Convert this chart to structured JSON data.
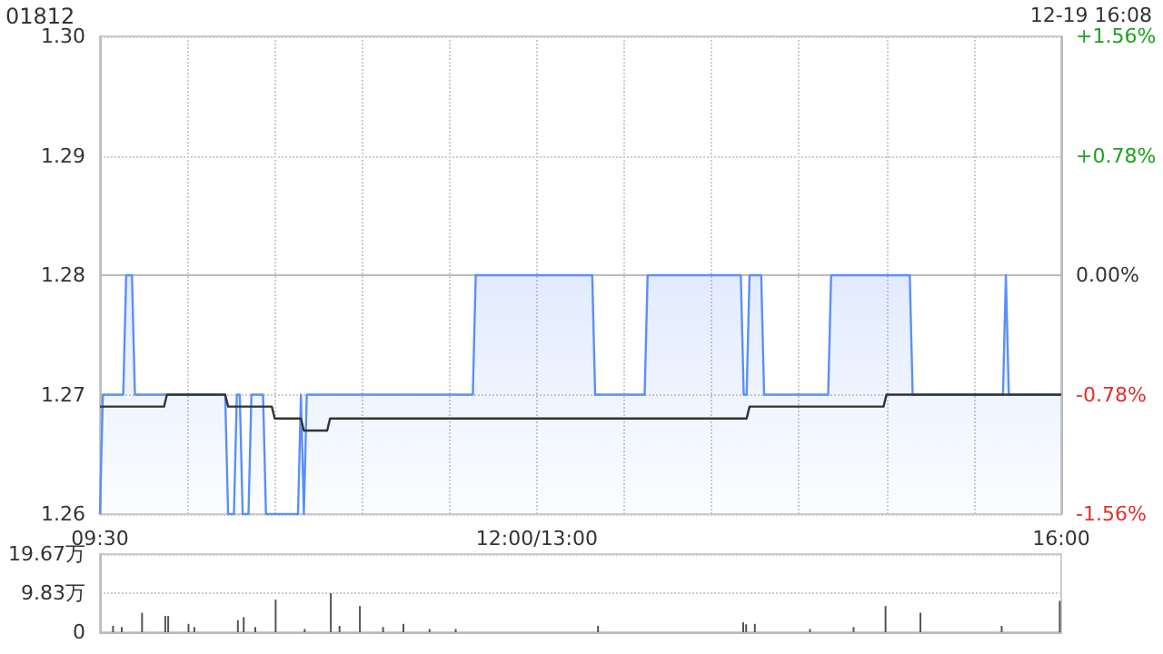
{
  "chart_data": [
    {
      "type": "line",
      "title": "01812",
      "annotations": [
        "12-19 16:08"
      ],
      "categories": [
        "09:30",
        null,
        null,
        null,
        null,
        null,
        null,
        null,
        null,
        null,
        null,
        null,
        null,
        null,
        null,
        null,
        null,
        null,
        null,
        null,
        null,
        null,
        null,
        null,
        null,
        null,
        null,
        null,
        null,
        null,
        null,
        null,
        null,
        null,
        null,
        null,
        null,
        null,
        null,
        null,
        null,
        null,
        null,
        null,
        null,
        null,
        null,
        null,
        null,
        null,
        null,
        null,
        null,
        null,
        null,
        null,
        null,
        null,
        null,
        null,
        null,
        null,
        null,
        null,
        null,
        null,
        null,
        null,
        null,
        null,
        null,
        null,
        null,
        null,
        null,
        null,
        null,
        null,
        null,
        null,
        null,
        null,
        null,
        null,
        null,
        null,
        null,
        null,
        null,
        null,
        null,
        null,
        null,
        null,
        null,
        null,
        null,
        null,
        null,
        null,
        null,
        null,
        null,
        null,
        null,
        null,
        null,
        null,
        null,
        null,
        null,
        null,
        null,
        null,
        null,
        null,
        null,
        null,
        null,
        null,
        null,
        null,
        null,
        null,
        null,
        null,
        null,
        null,
        null,
        null,
        null,
        null,
        null,
        null,
        null,
        null,
        null,
        null,
        null,
        null,
        null,
        null,
        null,
        null,
        null,
        null,
        null,
        null,
        null,
        null,
        "12:00/13:00",
        null,
        null,
        null,
        null,
        null,
        null,
        null,
        null,
        null,
        null,
        null,
        null,
        null,
        null,
        null,
        null,
        null,
        null,
        null,
        null,
        null,
        null,
        null,
        null,
        null,
        null,
        null,
        null,
        null,
        null,
        null,
        null,
        null,
        null,
        null,
        null,
        null,
        null,
        null,
        null,
        null,
        null,
        null,
        null,
        null,
        null,
        null,
        null,
        null,
        null,
        null,
        null,
        null,
        null,
        null,
        null,
        null,
        null,
        null,
        null,
        null,
        null,
        null,
        null,
        null,
        null,
        null,
        null,
        null,
        null,
        null,
        null,
        null,
        null,
        null,
        null,
        null,
        null,
        null,
        null,
        null,
        null,
        null,
        null,
        null,
        null,
        null,
        null,
        null,
        null,
        null,
        null,
        null,
        null,
        null,
        null,
        null,
        null,
        null,
        null,
        null,
        null,
        null,
        null,
        null,
        null,
        null,
        null,
        null,
        null,
        null,
        null,
        null,
        null,
        null,
        null,
        null,
        null,
        null,
        null,
        null,
        null,
        null,
        null,
        null,
        null,
        null,
        null,
        null,
        null,
        null,
        null,
        null,
        null,
        null,
        null,
        null,
        null,
        null,
        null,
        null,
        null,
        null,
        null,
        null,
        null,
        null,
        null,
        null,
        null,
        null,
        null,
        null,
        null,
        null,
        null,
        null,
        null,
        null,
        null,
        null,
        null,
        null,
        null,
        null,
        null,
        null,
        null,
        null,
        null,
        null,
        null,
        null,
        null,
        null,
        null,
        null,
        null,
        null,
        "16:00"
      ],
      "ylim": [
        1.26,
        1.3
      ],
      "yticks": [
        {
          "value": 1.26,
          "label": "1.26"
        },
        {
          "value": 1.27,
          "label": "1.27"
        },
        {
          "value": 1.28,
          "label": "1.28"
        },
        {
          "value": 1.29,
          "label": "1.29"
        },
        {
          "value": 1.3,
          "label": "1.30"
        }
      ],
      "y2lim": [
        -1.56,
        1.56
      ],
      "y2ticks": [
        {
          "value": -1.56,
          "label": "-1.56%"
        },
        {
          "value": -0.78,
          "label": "-0.78%"
        },
        {
          "value": 0,
          "label": "0.00%"
        },
        {
          "value": 0.78,
          "label": "+0.78%"
        },
        {
          "value": 1.56,
          "label": "+1.56%"
        }
      ],
      "grid": true,
      "series": [
        {
          "type": "area",
          "color": "#5b8ff9",
          "values": [
            1.26,
            1.27,
            1.27,
            1.27,
            1.27,
            1.27,
            1.27,
            1.27,
            1.27,
            1.28,
            1.28,
            1.28,
            1.27,
            1.27,
            1.27,
            1.27,
            1.27,
            1.27,
            1.27,
            1.27,
            1.27,
            1.27,
            1.27,
            1.27,
            1.27,
            1.27,
            1.27,
            1.27,
            1.27,
            1.27,
            1.27,
            1.27,
            1.27,
            1.27,
            1.27,
            1.27,
            1.27,
            1.27,
            1.27,
            1.27,
            1.27,
            1.27,
            1.27,
            1.27,
            1.26,
            1.26,
            1.26,
            1.27,
            1.27,
            1.26,
            1.26,
            1.26,
            1.27,
            1.27,
            1.27,
            1.27,
            1.27,
            1.26,
            1.26,
            1.26,
            1.26,
            1.26,
            1.26,
            1.26,
            1.26,
            1.26,
            1.26,
            1.26,
            1.26,
            1.27,
            1.26,
            1.27,
            1.27,
            1.27,
            1.27,
            1.27,
            1.27,
            1.27,
            1.27,
            1.27,
            1.27,
            1.27,
            1.27,
            1.27,
            1.27,
            1.27,
            1.27,
            1.27,
            1.27,
            1.27,
            1.27,
            1.27,
            1.27,
            1.27,
            1.27,
            1.27,
            1.27,
            1.27,
            1.27,
            1.27,
            1.27,
            1.27,
            1.27,
            1.27,
            1.27,
            1.27,
            1.27,
            1.27,
            1.27,
            1.27,
            1.27,
            1.27,
            1.27,
            1.27,
            1.27,
            1.27,
            1.27,
            1.27,
            1.27,
            1.27,
            1.27,
            1.27,
            1.27,
            1.27,
            1.27,
            1.27,
            1.27,
            1.27,
            1.27,
            1.28,
            1.28,
            1.28,
            1.28,
            1.28,
            1.28,
            1.28,
            1.28,
            1.28,
            1.28,
            1.28,
            1.28,
            1.28,
            1.28,
            1.28,
            1.28,
            1.28,
            1.28,
            1.28,
            1.28,
            1.28,
            1.28,
            1.28,
            1.28,
            1.28,
            1.28,
            1.28,
            1.28,
            1.28,
            1.28,
            1.28,
            1.28,
            1.28,
            1.28,
            1.28,
            1.28,
            1.28,
            1.28,
            1.28,
            1.28,
            1.28,
            1.27,
            1.27,
            1.27,
            1.27,
            1.27,
            1.27,
            1.27,
            1.27,
            1.27,
            1.27,
            1.27,
            1.27,
            1.27,
            1.27,
            1.27,
            1.27,
            1.27,
            1.27,
            1.28,
            1.28,
            1.28,
            1.28,
            1.28,
            1.28,
            1.28,
            1.28,
            1.28,
            1.28,
            1.28,
            1.28,
            1.28,
            1.28,
            1.28,
            1.28,
            1.28,
            1.28,
            1.28,
            1.28,
            1.28,
            1.28,
            1.28,
            1.28,
            1.28,
            1.28,
            1.28,
            1.28,
            1.28,
            1.28,
            1.28,
            1.28,
            1.28,
            1.27,
            1.27,
            1.28,
            1.28,
            1.28,
            1.28,
            1.28,
            1.27,
            1.27,
            1.27,
            1.27,
            1.27,
            1.27,
            1.27,
            1.27,
            1.27,
            1.27,
            1.27,
            1.27,
            1.27,
            1.27,
            1.27,
            1.27,
            1.27,
            1.27,
            1.27,
            1.27,
            1.27,
            1.27,
            1.27,
            1.28,
            1.28,
            1.28,
            1.28,
            1.28,
            1.28,
            1.28,
            1.28,
            1.28,
            1.28,
            1.28,
            1.28,
            1.28,
            1.28,
            1.28,
            1.28,
            1.28,
            1.28,
            1.28,
            1.28,
            1.28,
            1.28,
            1.28,
            1.28,
            1.28,
            1.28,
            1.28,
            1.28,
            1.27,
            1.27,
            1.27,
            1.27,
            1.27,
            1.27,
            1.27,
            1.27,
            1.27,
            1.27,
            1.27,
            1.27,
            1.27,
            1.27,
            1.27,
            1.27,
            1.27,
            1.27,
            1.27,
            1.27,
            1.27,
            1.27,
            1.27,
            1.27,
            1.27,
            1.27,
            1.27,
            1.27,
            1.27,
            1.27,
            1.27,
            1.27,
            1.28,
            1.27,
            1.27,
            1.27,
            1.27,
            1.27,
            1.27,
            1.27,
            1.27,
            1.27,
            1.27,
            1.27,
            1.27,
            1.27,
            1.27,
            1.27,
            1.27,
            1.27,
            1.27,
            1.27
          ]
        },
        {
          "type": "line",
          "color": "#333333",
          "values": [
            1.269,
            1.269,
            1.269,
            1.269,
            1.269,
            1.269,
            1.269,
            1.269,
            1.269,
            1.269,
            1.269,
            1.269,
            1.269,
            1.269,
            1.269,
            1.269,
            1.269,
            1.269,
            1.269,
            1.269,
            1.269,
            1.269,
            1.269,
            1.27,
            1.27,
            1.27,
            1.27,
            1.27,
            1.27,
            1.27,
            1.27,
            1.27,
            1.27,
            1.27,
            1.27,
            1.27,
            1.27,
            1.27,
            1.27,
            1.27,
            1.27,
            1.27,
            1.27,
            1.27,
            1.269,
            1.269,
            1.269,
            1.269,
            1.269,
            1.269,
            1.269,
            1.269,
            1.269,
            1.269,
            1.269,
            1.269,
            1.269,
            1.269,
            1.269,
            1.269,
            1.268,
            1.268,
            1.268,
            1.268,
            1.268,
            1.268,
            1.268,
            1.268,
            1.268,
            1.268,
            1.267,
            1.267,
            1.267,
            1.267,
            1.267,
            1.267,
            1.267,
            1.267,
            1.267,
            1.268,
            1.268,
            1.268,
            1.268,
            1.268,
            1.268,
            1.268,
            1.268,
            1.268,
            1.268,
            1.268,
            1.268,
            1.268,
            1.268,
            1.268,
            1.268,
            1.268,
            1.268,
            1.268,
            1.268,
            1.268,
            1.268,
            1.268,
            1.268,
            1.268,
            1.268,
            1.268,
            1.268,
            1.268,
            1.268,
            1.268,
            1.268,
            1.268,
            1.268,
            1.268,
            1.268,
            1.268,
            1.268,
            1.268,
            1.268,
            1.268,
            1.268,
            1.268,
            1.268,
            1.268,
            1.268,
            1.268,
            1.268,
            1.268,
            1.268,
            1.268,
            1.268,
            1.268,
            1.268,
            1.268,
            1.268,
            1.268,
            1.268,
            1.268,
            1.268,
            1.268,
            1.268,
            1.268,
            1.268,
            1.268,
            1.268,
            1.268,
            1.268,
            1.268,
            1.268,
            1.268,
            1.268,
            1.268,
            1.268,
            1.268,
            1.268,
            1.268,
            1.268,
            1.268,
            1.268,
            1.268,
            1.268,
            1.268,
            1.268,
            1.268,
            1.268,
            1.268,
            1.268,
            1.268,
            1.268,
            1.268,
            1.268,
            1.268,
            1.268,
            1.268,
            1.268,
            1.268,
            1.268,
            1.268,
            1.268,
            1.268,
            1.268,
            1.268,
            1.268,
            1.268,
            1.268,
            1.268,
            1.268,
            1.268,
            1.268,
            1.268,
            1.268,
            1.268,
            1.268,
            1.268,
            1.268,
            1.268,
            1.268,
            1.268,
            1.268,
            1.268,
            1.268,
            1.268,
            1.268,
            1.268,
            1.268,
            1.268,
            1.268,
            1.268,
            1.268,
            1.268,
            1.268,
            1.268,
            1.268,
            1.268,
            1.268,
            1.268,
            1.268,
            1.268,
            1.268,
            1.268,
            1.268,
            1.268,
            1.268,
            1.269,
            1.269,
            1.269,
            1.269,
            1.269,
            1.269,
            1.269,
            1.269,
            1.269,
            1.269,
            1.269,
            1.269,
            1.269,
            1.269,
            1.269,
            1.269,
            1.269,
            1.269,
            1.269,
            1.269,
            1.269,
            1.269,
            1.269,
            1.269,
            1.269,
            1.269,
            1.269,
            1.269,
            1.269,
            1.269,
            1.269,
            1.269,
            1.269,
            1.269,
            1.269,
            1.269,
            1.269,
            1.269,
            1.269,
            1.269,
            1.269,
            1.269,
            1.269,
            1.269,
            1.269,
            1.269,
            1.269,
            1.27,
            1.27,
            1.27,
            1.27,
            1.27,
            1.27,
            1.27,
            1.27,
            1.27,
            1.27,
            1.27,
            1.27,
            1.27,
            1.27,
            1.27,
            1.27,
            1.27,
            1.27,
            1.27,
            1.27,
            1.27,
            1.27,
            1.27,
            1.27,
            1.27,
            1.27,
            1.27,
            1.27,
            1.27,
            1.27,
            1.27,
            1.27,
            1.27,
            1.27,
            1.27,
            1.27,
            1.27,
            1.27,
            1.27,
            1.27,
            1.27,
            1.27,
            1.27,
            1.27,
            1.27,
            1.27,
            1.27,
            1.27,
            1.27,
            1.27,
            1.27,
            1.27,
            1.27,
            1.27,
            1.27,
            1.27,
            1.27,
            1.27,
            1.27,
            1.27,
            1.27
          ]
        }
      ]
    },
    {
      "type": "bar",
      "tick_labels": "y",
      "grid": "y",
      "categories": [
        null,
        null,
        null,
        null,
        null,
        null,
        null,
        null,
        null,
        null,
        null,
        null,
        null,
        null,
        null,
        null,
        null,
        null,
        null,
        null,
        null,
        null,
        null,
        null,
        null,
        null,
        null,
        null,
        null,
        null,
        null,
        null,
        null,
        null,
        null,
        null,
        null,
        null,
        null,
        null,
        null,
        null,
        null,
        null,
        null,
        null,
        null,
        null,
        null,
        null,
        null,
        null,
        null,
        null,
        null,
        null,
        null,
        null,
        null,
        null,
        null,
        null,
        null,
        null,
        null,
        null,
        null,
        null,
        null,
        null,
        null,
        null,
        null,
        null,
        null,
        null,
        null,
        null,
        null,
        null,
        null,
        null,
        null,
        null,
        null,
        null,
        null,
        null,
        null,
        null,
        null,
        null,
        null,
        null,
        null,
        null,
        null,
        null,
        null,
        null,
        null,
        null,
        null,
        null,
        null,
        null,
        null,
        null,
        null,
        null,
        null,
        null,
        null,
        null,
        null,
        null,
        null,
        null,
        null,
        null,
        null,
        null,
        null,
        null,
        null,
        null,
        null,
        null,
        null,
        null,
        null,
        null,
        null,
        null,
        null,
        null,
        null,
        null,
        null,
        null,
        null,
        null,
        null,
        null,
        null,
        null,
        null,
        null,
        null,
        null,
        null,
        null,
        null,
        null,
        null,
        null,
        null,
        null,
        null,
        null,
        null,
        null,
        null,
        null,
        null,
        null,
        null,
        null,
        null,
        null,
        null,
        null,
        null,
        null,
        null,
        null,
        null,
        null,
        null,
        null,
        null,
        null,
        null,
        null,
        null,
        null,
        null,
        null,
        null,
        null,
        null,
        null,
        null,
        null,
        null,
        null,
        null,
        null,
        null,
        null,
        null,
        null,
        null,
        null,
        null,
        null,
        null,
        null,
        null,
        null,
        null,
        null,
        null,
        null,
        null,
        null,
        null,
        null,
        null,
        null,
        null,
        null,
        null,
        null,
        null,
        null,
        null,
        null,
        null,
        null,
        null,
        null,
        null,
        null,
        null,
        null,
        null,
        null,
        null,
        null,
        null,
        null,
        null,
        null,
        null,
        null,
        null,
        null,
        null,
        null,
        null,
        null,
        null,
        null,
        null,
        null,
        null,
        null,
        null,
        null,
        null,
        null,
        null,
        null,
        null,
        null,
        null,
        null,
        null,
        null,
        null,
        null,
        null,
        null,
        null,
        null,
        null,
        null,
        null,
        null,
        null,
        null,
        null,
        null,
        null,
        null,
        null,
        null,
        null,
        null,
        null,
        null,
        null,
        null,
        null,
        null,
        null,
        null,
        null,
        null,
        null,
        null,
        null,
        null,
        null,
        null,
        null,
        null,
        null,
        null,
        null,
        null,
        null,
        null,
        null,
        null,
        null,
        null,
        null,
        null,
        null,
        null,
        null,
        null,
        null,
        null,
        null,
        null,
        null,
        null,
        null
      ],
      "ylim": [
        0,
        19.67
      ],
      "yticks": [
        {
          "value": 0,
          "label": "0"
        },
        {
          "value": 9.83,
          "label": "9.83万"
        },
        {
          "value": 19.67,
          "label": "19.67万"
        }
      ],
      "series": [
        {
          "color": "#555555",
          "values": [
            null,
            null,
            null,
            null,
            1.6,
            null,
            null,
            1.3,
            null,
            null,
            null,
            null,
            null,
            null,
            4.9,
            null,
            null,
            null,
            null,
            null,
            null,
            null,
            4.1,
            4.1,
            null,
            null,
            null,
            null,
            null,
            null,
            2.1,
            null,
            1.3,
            null,
            null,
            null,
            null,
            null,
            null,
            null,
            null,
            null,
            null,
            null,
            null,
            null,
            null,
            3.0,
            null,
            3.8,
            null,
            null,
            null,
            1.3,
            null,
            null,
            null,
            null,
            null,
            null,
            8.2,
            null,
            null,
            null,
            null,
            null,
            null,
            null,
            null,
            null,
            0.8,
            null,
            null,
            null,
            null,
            null,
            null,
            null,
            null,
            9.8,
            null,
            null,
            1.6,
            null,
            null,
            null,
            null,
            null,
            null,
            6.6,
            null,
            null,
            null,
            null,
            null,
            null,
            null,
            1.3,
            null,
            null,
            null,
            null,
            null,
            null,
            2.1,
            null,
            null,
            null,
            null,
            null,
            null,
            null,
            null,
            0.8,
            null,
            null,
            null,
            null,
            null,
            null,
            null,
            null,
            0.8,
            null,
            null,
            null,
            null,
            null,
            null,
            null,
            null,
            null,
            null,
            null,
            null,
            null,
            null,
            null,
            null,
            null,
            null,
            null,
            null,
            null,
            null,
            null,
            null,
            null,
            null,
            null,
            null,
            null,
            null,
            null,
            null,
            null,
            null,
            null,
            null,
            null,
            null,
            null,
            null,
            null,
            null,
            null,
            null,
            null,
            null,
            null,
            null,
            1.6,
            null,
            null,
            null,
            null,
            null,
            null,
            null,
            null,
            null,
            null,
            null,
            null,
            null,
            null,
            null,
            null,
            null,
            null,
            null,
            null,
            null,
            null,
            null,
            null,
            null,
            null,
            null,
            null,
            null,
            null,
            null,
            null,
            null,
            null,
            null,
            null,
            null,
            null,
            null,
            null,
            null,
            null,
            null,
            null,
            null,
            null,
            null,
            null,
            null,
            2.5,
            2.0,
            null,
            null,
            2.1,
            null,
            null,
            null,
            null,
            null,
            null,
            null,
            null,
            null,
            null,
            null,
            null,
            null,
            null,
            null,
            null,
            null,
            null,
            0.8,
            null,
            null,
            null,
            null,
            null,
            null,
            null,
            null,
            null,
            null,
            null,
            null,
            null,
            null,
            1.3,
            null,
            null,
            null,
            null,
            null,
            null,
            null,
            null,
            null,
            null,
            6.6,
            null,
            null,
            null,
            null,
            null,
            null,
            null,
            null,
            null,
            null,
            null,
            4.9,
            null,
            null,
            null,
            null,
            null,
            null,
            null,
            null,
            null,
            null,
            null,
            null,
            null,
            null,
            null,
            null,
            null,
            null,
            null,
            null,
            null,
            null,
            null,
            null,
            null,
            null,
            null,
            1.6,
            null,
            null,
            null,
            null,
            null,
            null,
            null,
            null,
            null,
            null,
            null,
            null,
            null,
            null,
            null,
            null,
            null,
            null,
            null,
            7.9
          ]
        }
      ]
    }
  ]
}
